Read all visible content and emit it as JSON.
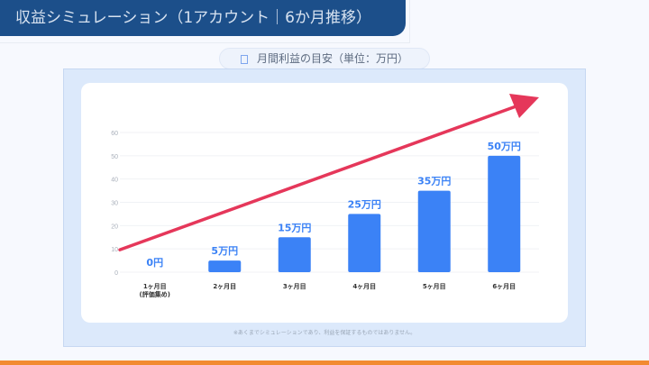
{
  "header": {
    "title": "収益シミュレーション（1アカウント｜6か月推移）"
  },
  "subtitle": {
    "icon": "square-icon",
    "label": "月間利益の目安（単位：万円）"
  },
  "footnote": "※あくまでシミュレーションであり、利益を保証するものではありません。",
  "colors": {
    "header": "#1c4f8a",
    "bar": "#3b82f6",
    "arrow": "#e5375a",
    "accent": "#f28a30"
  },
  "chart_data": {
    "type": "bar",
    "categories": [
      "1ヶ月目\n(評価集め)",
      "2ヶ月目",
      "3ヶ月目",
      "4ヶ月目",
      "5ヶ月目",
      "6ヶ月目"
    ],
    "values": [
      0,
      5,
      15,
      25,
      35,
      50
    ],
    "data_labels": [
      "0円",
      "5万円",
      "15万円",
      "25万円",
      "35万円",
      "50万円"
    ],
    "ylim": [
      0,
      60
    ],
    "yticks": [
      0,
      10,
      20,
      30,
      40,
      50,
      60
    ],
    "grid": true,
    "trend_arrow": {
      "from": 10,
      "to": "up-right"
    }
  }
}
